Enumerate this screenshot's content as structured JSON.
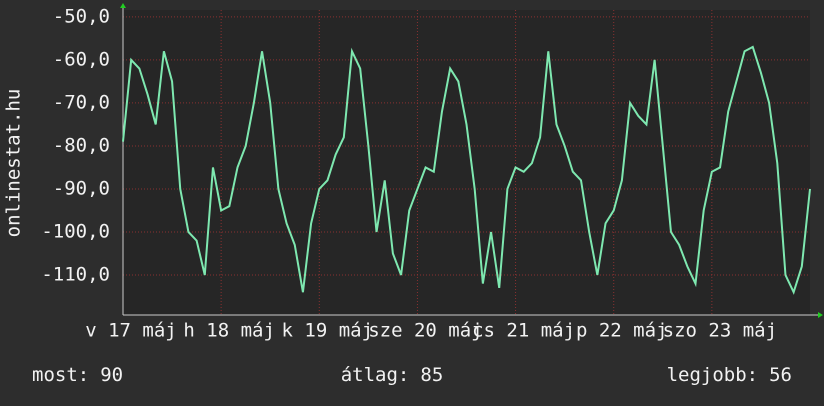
{
  "chart_data": {
    "type": "line",
    "y_label": "onlinestat.hu",
    "xlim": [
      0,
      168
    ],
    "xticks": [
      {
        "value": 0,
        "label": "v 17 máj"
      },
      {
        "value": 24,
        "label": "h 18 máj"
      },
      {
        "value": 48,
        "label": "k 19 máj"
      },
      {
        "value": 72,
        "label": "sze 20 máj"
      },
      {
        "value": 96,
        "label": "cs 21 máj"
      },
      {
        "value": 120,
        "label": "p 22 máj"
      },
      {
        "value": 144,
        "label": "szo 23 máj"
      }
    ],
    "ylim": [
      -119.3,
      -48.4
    ],
    "yticks": [
      {
        "value": -50,
        "label": "-50,0"
      },
      {
        "value": -60,
        "label": "-60,0"
      },
      {
        "value": -70,
        "label": "-70,0"
      },
      {
        "value": -80,
        "label": "-80,0"
      },
      {
        "value": -90,
        "label": "-90,0"
      },
      {
        "value": -100,
        "label": "-100,0"
      },
      {
        "value": -110,
        "label": "-110,0"
      }
    ],
    "grid": true,
    "x": [
      0,
      2,
      4,
      6,
      8,
      10,
      12,
      14,
      16,
      18,
      20,
      22,
      24,
      26,
      28,
      30,
      32,
      34,
      36,
      38,
      40,
      42,
      44,
      46,
      48,
      50,
      52,
      54,
      56,
      58,
      60,
      62,
      64,
      66,
      68,
      70,
      72,
      74,
      76,
      78,
      80,
      82,
      84,
      86,
      88,
      90,
      92,
      94,
      96,
      98,
      100,
      102,
      104,
      106,
      108,
      110,
      112,
      114,
      116,
      118,
      120,
      122,
      124,
      126,
      128,
      130,
      132,
      134,
      136,
      138,
      140,
      142,
      144,
      146,
      148,
      150,
      152,
      154,
      156,
      158,
      160,
      162,
      164,
      166,
      168
    ],
    "series": [
      {
        "color": "#7ee8b0",
        "values": [
          -79,
          -60,
          -62,
          -68,
          -75,
          -58,
          -65,
          -90,
          -100,
          -102,
          -110,
          -85,
          -95,
          -94,
          -85,
          -80,
          -70,
          -58,
          -70,
          -90,
          -98,
          -103,
          -114,
          -98,
          -90,
          -88,
          -82,
          -78,
          -58,
          -62,
          -80,
          -100,
          -88,
          -105,
          -110,
          -95,
          -90,
          -85,
          -86,
          -72,
          -62,
          -65,
          -75,
          -90,
          -112,
          -100,
          -113,
          -90,
          -85,
          -86,
          -84,
          -78,
          -58,
          -75,
          -80,
          -86,
          -88,
          -100,
          -110,
          -98,
          -95,
          -88,
          -70,
          -73,
          -75,
          -60,
          -80,
          -100,
          -103,
          -108,
          -112,
          -95,
          -86,
          -85,
          -72,
          -65,
          -58,
          -57,
          -63,
          -70,
          -84,
          -110,
          -114,
          -108,
          -90
        ]
      }
    ],
    "footer": [
      {
        "label": "most:",
        "value": 90
      },
      {
        "label": "átlag:",
        "value": 85
      },
      {
        "label": "legjobb:",
        "value": 56
      }
    ]
  }
}
